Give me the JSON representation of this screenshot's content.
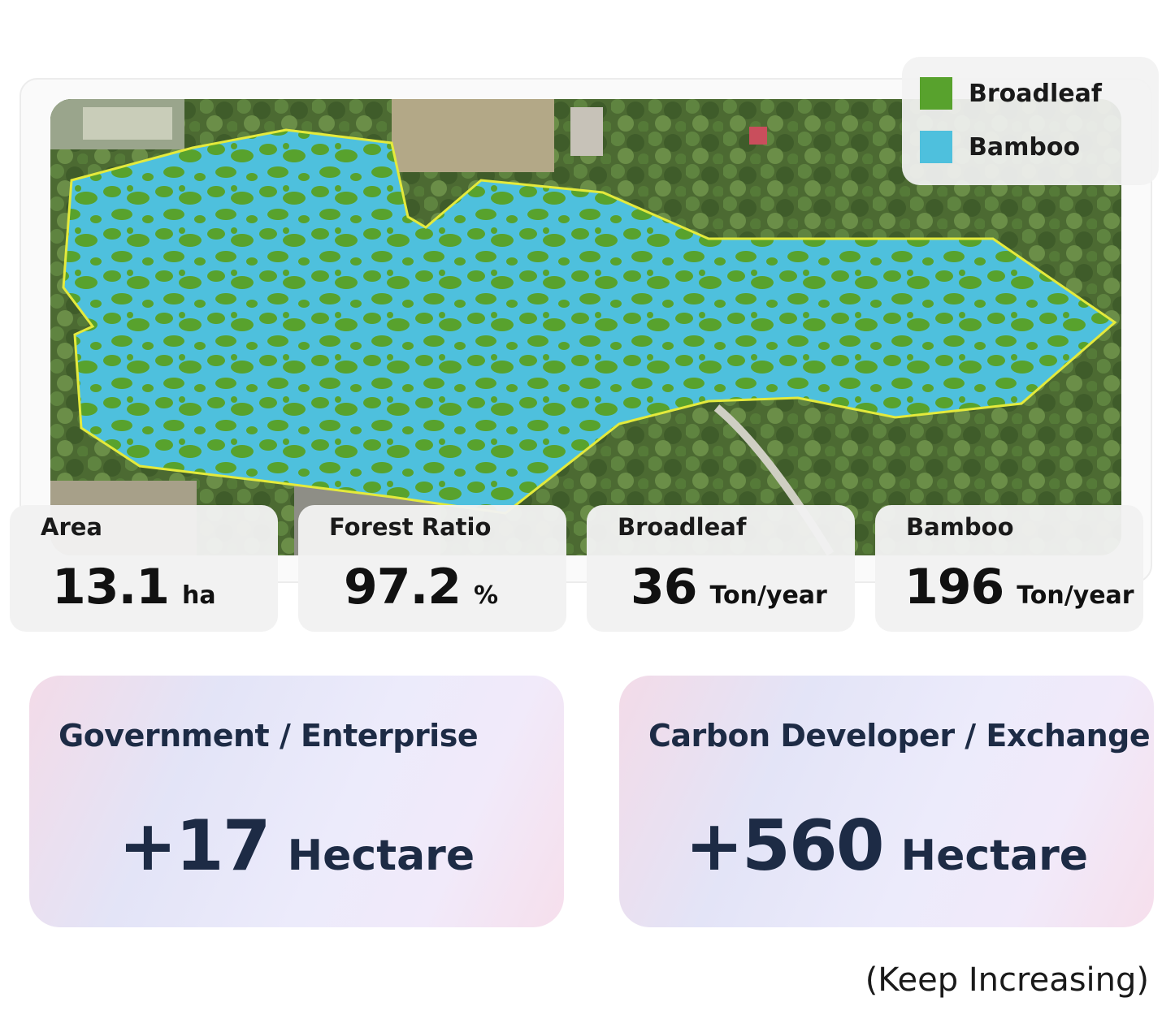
{
  "legend": {
    "items": [
      {
        "label": "Broadleaf",
        "color": "#58a22d"
      },
      {
        "label": "Bamboo",
        "color": "#4ec0dd"
      }
    ]
  },
  "stats": [
    {
      "label": "Area",
      "value": "13.1",
      "unit": "ha"
    },
    {
      "label": "Forest Ratio",
      "value": "97.2",
      "unit": "%"
    },
    {
      "label": "Broadleaf",
      "value": "36",
      "unit": "Ton/year"
    },
    {
      "label": "Bamboo",
      "value": "196",
      "unit": "Ton/year"
    }
  ],
  "audiences": [
    {
      "title": "Government / Enterprise",
      "value": "+17",
      "unit": "Hectare"
    },
    {
      "title": "Carbon Developer / Exchange",
      "value": "+560",
      "unit": "Hectare"
    }
  ],
  "footnote": "(Keep Increasing)",
  "colors": {
    "boundary": "#e4ea3c",
    "terrain": "#4f6b35",
    "accent_text": "#1d2b45"
  }
}
